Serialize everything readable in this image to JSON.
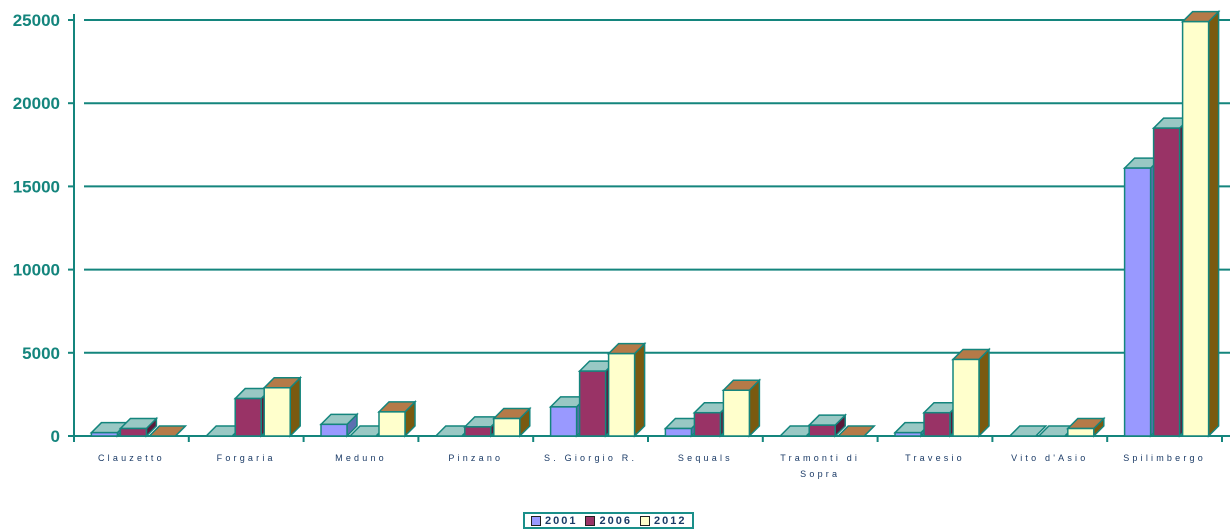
{
  "chart_data": {
    "type": "bar",
    "title": "",
    "xlabel": "",
    "ylabel": "",
    "ylim": [
      0,
      25000
    ],
    "yticks": [
      0,
      5000,
      10000,
      15000,
      20000,
      25000
    ],
    "grid": true,
    "legend_position": "bottom",
    "categories": [
      "Clauzetto",
      "Forgaria",
      "Meduno",
      "Pinzano",
      "S. Giorgio R.",
      "Sequals",
      "Tramonti di Sopra",
      "Travesio",
      "Vito d'Asio",
      "Spilimbergo"
    ],
    "category_labels": [
      [
        "Clauzetto"
      ],
      [
        "Forgaria"
      ],
      [
        "Meduno"
      ],
      [
        "Pinzano"
      ],
      [
        "S. Giorgio R."
      ],
      [
        "Sequals"
      ],
      [
        "Tramonti di",
        "Sopra"
      ],
      [
        "Travesio"
      ],
      [
        "Vito d'Asio"
      ],
      [
        "Spilimbergo"
      ]
    ],
    "series": [
      {
        "name": "2001",
        "color": "#9999ff",
        "values": [
          200,
          0,
          700,
          0,
          1750,
          450,
          0,
          200,
          0,
          16100
        ]
      },
      {
        "name": "2006",
        "color": "#993366",
        "values": [
          450,
          2250,
          0,
          550,
          3900,
          1400,
          650,
          1400,
          0,
          18500
        ]
      },
      {
        "name": "2012",
        "color": "#ffffcc",
        "values": [
          0,
          2900,
          1450,
          1050,
          4950,
          2750,
          0,
          4600,
          450,
          24900
        ]
      }
    ],
    "colors": {
      "axis": "#14857d",
      "grid": "#14857d",
      "bar_outline": "#14857d",
      "side_2001": "#5b6fb0",
      "side_2006": "#5b1a3a",
      "side_2012": "#7a5a10",
      "top_cap": "#99c8c4",
      "top_cap_2012": "#b57a48"
    }
  }
}
